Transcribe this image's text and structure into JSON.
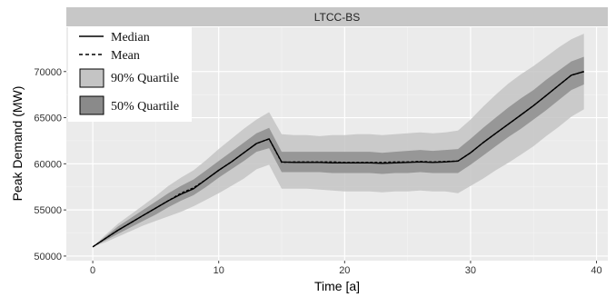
{
  "chart_data": {
    "type": "line",
    "facet_label": "LTCC-BS",
    "xlabel": "Time [a]",
    "ylabel": "Peak Demand (MW)",
    "xlim": [
      -2.1,
      40.9
    ],
    "ylim": [
      49500,
      74800
    ],
    "x_ticks": [
      0,
      10,
      20,
      30,
      40
    ],
    "y_ticks": [
      50000,
      55000,
      60000,
      65000,
      70000
    ],
    "grid": true,
    "legend_position": "top-left",
    "legend": [
      "Median",
      "Mean",
      "90% Quartile",
      "50% Quartile"
    ],
    "x": [
      0,
      1,
      2,
      3,
      4,
      5,
      6,
      7,
      8,
      9,
      10,
      11,
      12,
      13,
      14,
      15,
      16,
      17,
      18,
      19,
      20,
      21,
      22,
      23,
      24,
      25,
      26,
      27,
      28,
      29,
      30,
      31,
      32,
      33,
      34,
      35,
      36,
      37,
      38,
      39
    ],
    "series": [
      {
        "name": "Median",
        "style": "solid",
        "values": [
          51000,
          51900,
          52800,
          53600,
          54400,
          55200,
          56000,
          56700,
          57300,
          58300,
          59300,
          60200,
          61200,
          62200,
          62700,
          60200,
          60150,
          60150,
          60150,
          60100,
          60100,
          60100,
          60100,
          60050,
          60100,
          60150,
          60200,
          60150,
          60200,
          60300,
          61200,
          62300,
          63300,
          64300,
          65300,
          66300,
          67400,
          68500,
          69600,
          70000
        ]
      },
      {
        "name": "Mean",
        "style": "dashed",
        "values": [
          51000,
          51900,
          52800,
          53600,
          54400,
          55200,
          56000,
          56800,
          57400,
          58300,
          59300,
          60200,
          61200,
          62200,
          62700,
          60150,
          60200,
          60200,
          60200,
          60200,
          60150,
          60150,
          60150,
          60150,
          60200,
          60200,
          60250,
          60200,
          60250,
          60300,
          61200,
          62300,
          63300,
          64300,
          65300,
          66300,
          67400,
          68500,
          69600,
          70000
        ]
      }
    ],
    "bands": [
      {
        "name": "90% Quartile",
        "color": "#c4c4c4",
        "lower": [
          51000,
          51500,
          52100,
          52700,
          53300,
          53800,
          54300,
          54800,
          55400,
          56100,
          56800,
          57600,
          58400,
          59400,
          59900,
          57300,
          57300,
          57300,
          57200,
          57100,
          57000,
          57000,
          57000,
          56900,
          57000,
          57000,
          57100,
          57000,
          57000,
          56800,
          57600,
          58400,
          59300,
          60100,
          61000,
          61900,
          63000,
          64000,
          65100,
          65900
        ],
        "upper": [
          51000,
          52300,
          53500,
          54500,
          55500,
          56500,
          57600,
          58500,
          59300,
          60400,
          61600,
          62700,
          63800,
          64800,
          65600,
          63200,
          63100,
          63100,
          63000,
          63100,
          63100,
          63200,
          63200,
          63100,
          63200,
          63300,
          63400,
          63300,
          63400,
          63600,
          64800,
          66200,
          67500,
          68700,
          69700,
          70600,
          71600,
          72600,
          73500,
          74100
        ]
      },
      {
        "name": "50% Quartile",
        "color": "#8a8a8a",
        "lower": [
          51000,
          51700,
          52400,
          53100,
          53800,
          54500,
          55300,
          56000,
          56600,
          57500,
          58500,
          59400,
          60300,
          61300,
          61700,
          59100,
          59100,
          59100,
          59100,
          59000,
          59000,
          59000,
          59000,
          58900,
          59000,
          59000,
          59100,
          59000,
          59000,
          59000,
          59900,
          60900,
          61900,
          62900,
          63800,
          64800,
          65800,
          66900,
          68000,
          68600
        ],
        "upper": [
          51000,
          52100,
          53200,
          54100,
          55000,
          55900,
          56800,
          57600,
          58300,
          59300,
          60300,
          61300,
          62300,
          63300,
          63900,
          61300,
          61300,
          61300,
          61300,
          61300,
          61300,
          61300,
          61300,
          61200,
          61300,
          61400,
          61500,
          61400,
          61500,
          61600,
          62700,
          63900,
          65000,
          66100,
          67100,
          68000,
          69100,
          70100,
          71100,
          71600
        ]
      }
    ],
    "colors": {
      "panel_background": "#ebebeb",
      "grid_major": "#ffffff",
      "grid_minor": "#f4f4f4",
      "strip_background": "#c7c7c7",
      "line": "#000000",
      "legend_background": "#ffffff"
    }
  }
}
